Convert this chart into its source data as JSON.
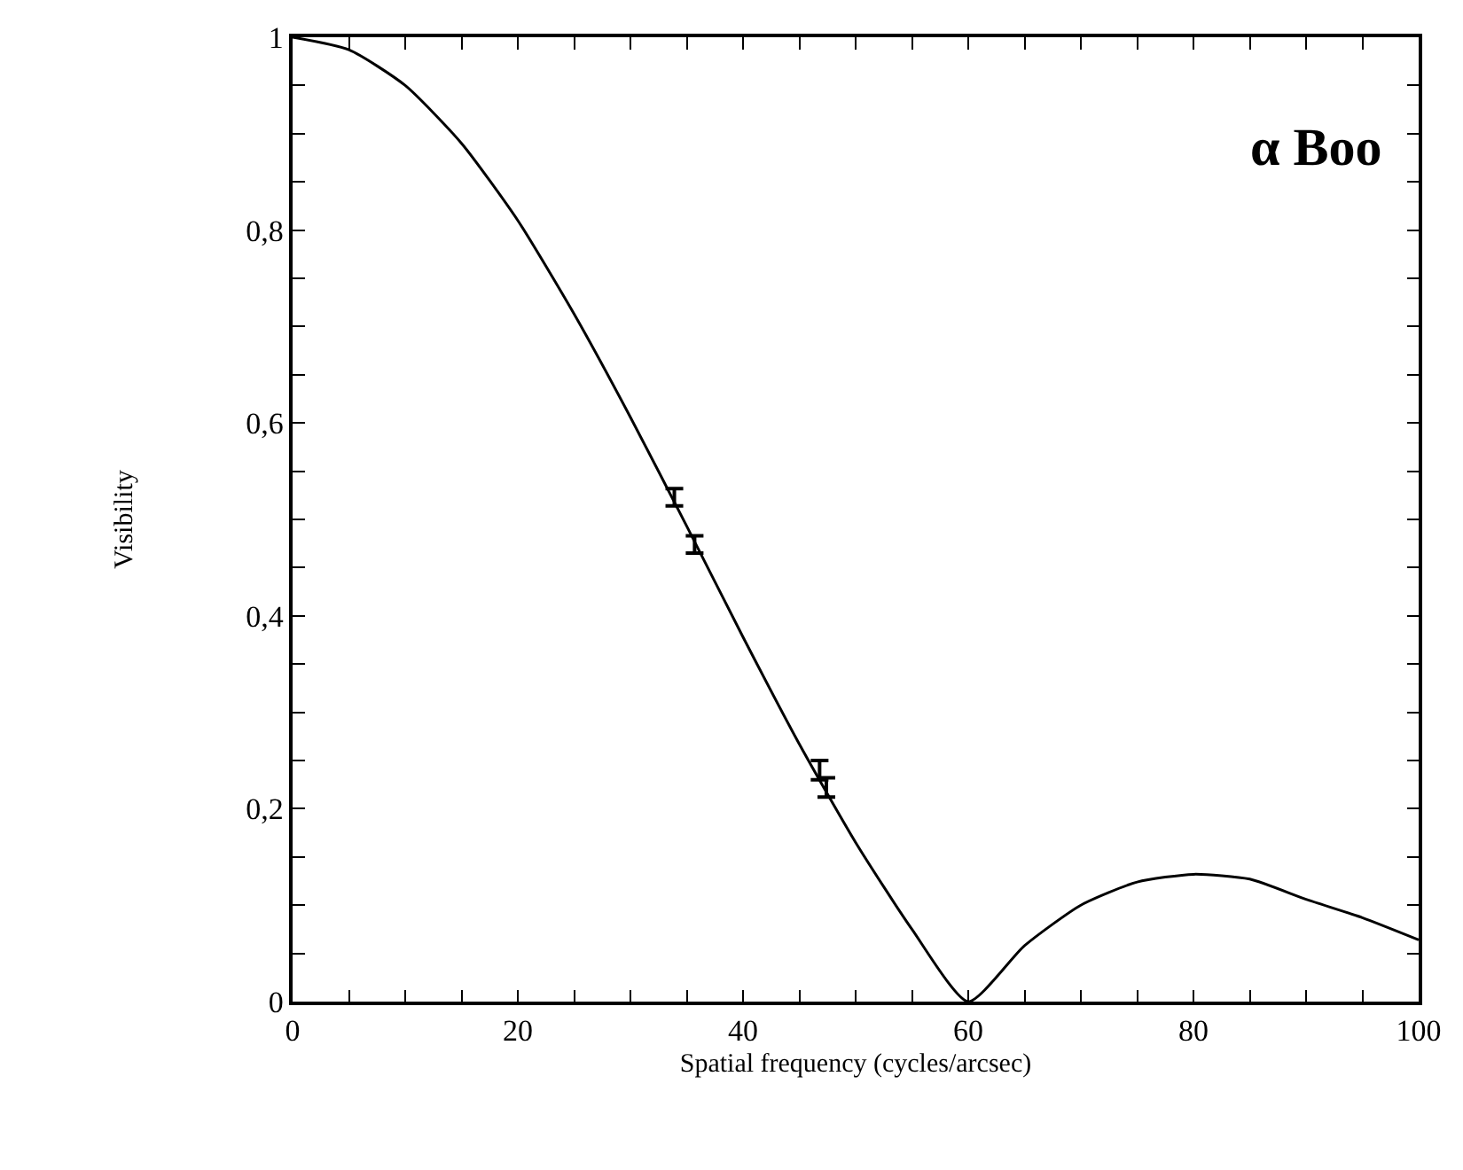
{
  "chart_data": {
    "type": "line",
    "xlabel": "Spatial frequency (cycles/arcsec)",
    "ylabel": "Visibility",
    "annotations": [
      "α Boo"
    ],
    "xlim": [
      0,
      100
    ],
    "ylim": [
      0,
      1
    ],
    "xticks": [
      0,
      {
        "value": 5,
        "label": null
      },
      {
        "value": 10,
        "label": null
      },
      {
        "value": 15,
        "label": null
      },
      20,
      {
        "value": 25,
        "label": null
      },
      {
        "value": 30,
        "label": null
      },
      {
        "value": 35,
        "label": null
      },
      40,
      {
        "value": 45,
        "label": null
      },
      {
        "value": 50,
        "label": null
      },
      {
        "value": 55,
        "label": null
      },
      60,
      {
        "value": 65,
        "label": null
      },
      {
        "value": 70,
        "label": null
      },
      {
        "value": 75,
        "label": null
      },
      80,
      {
        "value": 85,
        "label": null
      },
      {
        "value": 90,
        "label": null
      },
      {
        "value": 95,
        "label": null
      },
      100
    ],
    "yticks": [
      {
        "value": 0,
        "label": "0"
      },
      {
        "value": 0.05,
        "label": null
      },
      {
        "value": 0.1,
        "label": null
      },
      {
        "value": 0.15,
        "label": null
      },
      {
        "value": 0.2,
        "label": "0,2"
      },
      {
        "value": 0.25,
        "label": null
      },
      {
        "value": 0.3,
        "label": null
      },
      {
        "value": 0.35,
        "label": null
      },
      {
        "value": 0.4,
        "label": "0,4"
      },
      {
        "value": 0.45,
        "label": null
      },
      {
        "value": 0.5,
        "label": null
      },
      {
        "value": 0.55,
        "label": null
      },
      {
        "value": 0.6,
        "label": "0,6"
      },
      {
        "value": 0.65,
        "label": null
      },
      {
        "value": 0.7,
        "label": null
      },
      {
        "value": 0.75,
        "label": null
      },
      {
        "value": 0.8,
        "label": "0,8"
      },
      {
        "value": 0.85,
        "label": null
      },
      {
        "value": 0.9,
        "label": null
      },
      {
        "value": 0.95,
        "label": null
      },
      {
        "value": 1,
        "label": "1"
      }
    ],
    "series": [
      {
        "color": "#000000",
        "line_style": "solid",
        "x": [
          0,
          5,
          10,
          15,
          20,
          25,
          30,
          35,
          40,
          45,
          50,
          55,
          60,
          65,
          70,
          75,
          80,
          85,
          90,
          95,
          100
        ],
        "values": [
          1.0,
          0.987,
          0.95,
          0.89,
          0.81,
          0.713,
          0.606,
          0.493,
          0.378,
          0.267,
          0.165,
          0.075,
          0.0,
          0.058,
          0.1,
          0.124,
          0.132,
          0.127,
          0.106,
          0.087,
          0.064
        ]
      },
      {
        "type": "scatter",
        "color": "#000000",
        "x": [
          33.9,
          35.7,
          46.8,
          47.4
        ],
        "values": [
          0.523,
          0.474,
          0.24,
          0.222
        ],
        "errors": [
          0.009,
          0.009,
          0.01,
          0.01
        ]
      }
    ]
  }
}
